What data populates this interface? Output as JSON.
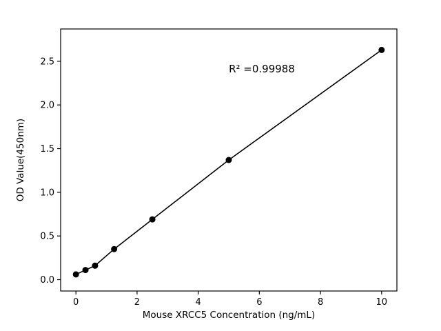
{
  "chart_data": {
    "type": "scatter",
    "title": "",
    "xlabel": "Mouse XRCC5 Concentration (ng/mL)",
    "ylabel": "OD Value(450nm)",
    "annotation": "R² =0.99988",
    "x": [
      0,
      0.3125,
      0.625,
      1.25,
      2.5,
      5,
      10
    ],
    "y": [
      0.06,
      0.11,
      0.16,
      0.35,
      0.69,
      1.37,
      2.63
    ],
    "line": true,
    "xlim": [
      -0.5,
      10.5
    ],
    "ylim": [
      -0.13,
      2.87
    ],
    "xticks": [
      0,
      2,
      4,
      6,
      8,
      10
    ],
    "xtick_labels": [
      "0",
      "2",
      "4",
      "6",
      "8",
      "10"
    ],
    "yticks": [
      0.0,
      0.5,
      1.0,
      1.5,
      2.0,
      2.5
    ],
    "ytick_labels": [
      "0.0",
      "0.5",
      "1.0",
      "1.5",
      "2.0",
      "2.5"
    ],
    "grid": false,
    "legend": "none",
    "marker_color": "#000000",
    "line_color": "#000000",
    "axis_color": "#000000",
    "background": "#ffffff"
  }
}
